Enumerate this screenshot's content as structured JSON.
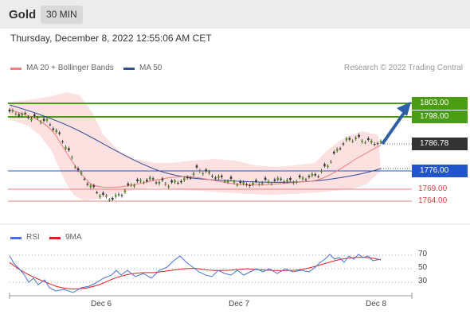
{
  "header": {
    "title": "Gold",
    "timeframe": "30 MIN"
  },
  "datetime": "Thursday, December 8, 2022 12:55:06 AM CET",
  "legend": {
    "ma20_label": "MA 20 + Bollinger Bands",
    "ma50_label": "MA 50",
    "credit": "Research © 2022 Trading Central"
  },
  "levels": {
    "r2": "1803.00",
    "r1": "1798.00",
    "last": "1786.78",
    "s1": "1776.00",
    "s2": "1769.00",
    "s3": "1764.00"
  },
  "rsi_legend": {
    "rsi": "RSI",
    "ma9": "9MA"
  },
  "rsi_ticks": [
    "70",
    "50",
    "30"
  ],
  "x_axis": [
    "Dec 6",
    "Dec 7",
    "Dec 8"
  ],
  "colors": {
    "green": "#4a9c12",
    "blue": "#2255cc",
    "red": "#e04040",
    "ma20": "#f08080",
    "ma50": "#2e4f9a",
    "band": "#fde0e0",
    "arrow": "#2e5fa5",
    "last_bg": "#333333"
  },
  "chart_data": {
    "type": "candlestick",
    "instrument": "Gold",
    "timeframe": "30 MIN",
    "ylim": [
      1760,
      1806
    ],
    "price_series_approx": [
      1800,
      1799,
      1798,
      1797,
      1796,
      1792,
      1786,
      1778,
      1772,
      1768,
      1765,
      1764,
      1766,
      1770,
      1771,
      1772,
      1771,
      1770,
      1771,
      1772,
      1776,
      1775,
      1773,
      1772,
      1771,
      1770,
      1770,
      1771,
      1771,
      1772,
      1771,
      1772,
      1773,
      1774,
      1778,
      1784,
      1788,
      1789,
      1788,
      1787
    ],
    "series": [
      {
        "name": "MA 20 + Bollinger Bands",
        "type": "line"
      },
      {
        "name": "MA 50",
        "type": "line"
      },
      {
        "name": "RSI",
        "type": "line",
        "ylim": [
          10,
          80
        ]
      },
      {
        "name": "9MA",
        "type": "line"
      }
    ],
    "horizontal_levels": [
      1803.0,
      1798.0,
      1786.78,
      1776.0,
      1769.0,
      1764.0
    ],
    "x_ticks": [
      "Dec 6",
      "Dec 7",
      "Dec 8"
    ],
    "rsi_levels": [
      70,
      50,
      30
    ]
  }
}
